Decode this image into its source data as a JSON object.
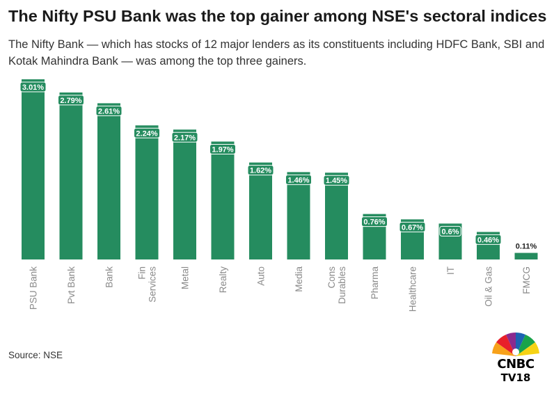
{
  "title": "The Nifty PSU Bank was the top gainer among NSE's sectoral indices",
  "subtitle": "The Nifty Bank — which has stocks of 12 major lenders as its constituents including HDFC Bank, SBI and Kotak Mahindra Bank — was among the top three gainers.",
  "source": "Source: NSE",
  "logo": {
    "line1": "CNBC",
    "line2": "TV18"
  },
  "colors": {
    "bar": "#258c5f",
    "label_bg": "#258c5f",
    "label_text": "#ffffff",
    "axis_text": "#8a8a8a"
  },
  "chart_data": {
    "type": "bar",
    "categories": [
      "PSU Bank",
      "Pvt Bank",
      "Bank",
      "Fin Services",
      "Metal",
      "Realty",
      "Auto",
      "Media",
      "Cons Durables",
      "Pharma",
      "Healthcare",
      "IT",
      "Oil & Gas",
      "FMCG"
    ],
    "category_lines": [
      [
        "PSU Bank"
      ],
      [
        "Pvt Bank"
      ],
      [
        "Bank"
      ],
      [
        "Fin",
        "Services"
      ],
      [
        "Metal"
      ],
      [
        "Realty"
      ],
      [
        "Auto"
      ],
      [
        "Media"
      ],
      [
        "Cons",
        "Durables"
      ],
      [
        "Pharma"
      ],
      [
        "Healthcare"
      ],
      [
        "IT"
      ],
      [
        "Oil & Gas"
      ],
      [
        "FMCG"
      ]
    ],
    "values": [
      3.01,
      2.79,
      2.61,
      2.24,
      2.17,
      1.97,
      1.62,
      1.46,
      1.45,
      0.76,
      0.67,
      0.6,
      0.46,
      0.11
    ],
    "data_labels": [
      "3.01%",
      "2.79%",
      "2.61%",
      "2.24%",
      "2.17%",
      "1.97%",
      "1.62%",
      "1.46%",
      "1.45%",
      "0.76%",
      "0.67%",
      "0.6%",
      "0.46%",
      "0.11%"
    ],
    "ylim": [
      0,
      3.01
    ],
    "grid": false,
    "legend": "none"
  }
}
